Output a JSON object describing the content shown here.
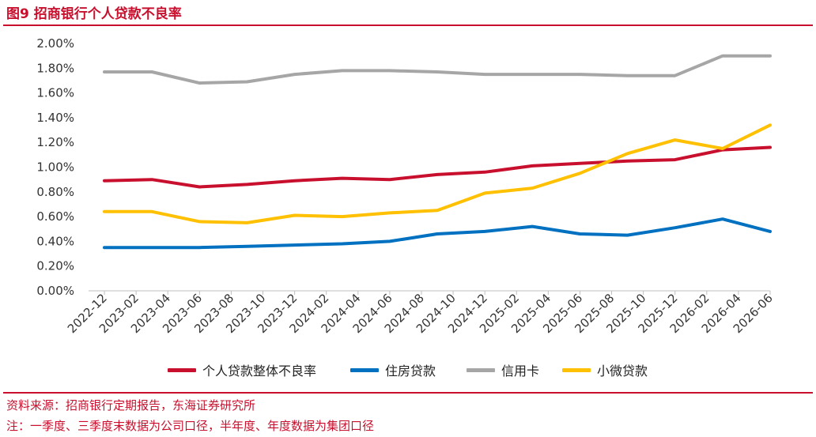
{
  "figure": {
    "title": "图9  招商银行个人贷款不良率",
    "source": "资料来源：招商银行定期报告，东海证券研究所",
    "note": "注：一季度、三季度末数据为公司口径，半年度、年度数据为集团口径"
  },
  "chart_data": {
    "type": "line",
    "title": "",
    "xlabel": "",
    "ylabel": "",
    "ylim": [
      0,
      0.02
    ],
    "y_ticks": [
      "0.00%",
      "0.20%",
      "0.40%",
      "0.60%",
      "0.80%",
      "1.00%",
      "1.20%",
      "1.40%",
      "1.60%",
      "1.80%",
      "2.00%"
    ],
    "x_ticks": [
      "2022-12",
      "2023-02",
      "2023-04",
      "2023-06",
      "2023-08",
      "2023-10",
      "2023-12",
      "2024-02",
      "2024-04",
      "2024-06",
      "2024-08",
      "2024-10",
      "2024-12",
      "2025-02",
      "2025-04",
      "2025-06",
      "2025-08",
      "2025-10",
      "2025-12",
      "2026-02",
      "2026-04",
      "2026-06"
    ],
    "x": [
      "2022-12",
      "2023-03",
      "2023-06",
      "2023-09",
      "2023-12",
      "2024-03",
      "2024-06",
      "2024-09",
      "2024-12",
      "2025-03",
      "2025-06",
      "2025-09",
      "2025-12",
      "2026-03",
      "2026-06"
    ],
    "grid": false,
    "legend": "bottom",
    "series": [
      {
        "name": "个人贷款整体不良率",
        "color": "#c8102e",
        "values": [
          0.0089,
          0.009,
          0.0084,
          0.0086,
          0.0089,
          0.0091,
          0.009,
          0.0094,
          0.0096,
          0.0101,
          0.0103,
          0.0105,
          0.0106,
          0.0114,
          0.0116
        ]
      },
      {
        "name": "住房贷款",
        "color": "#0070c0",
        "values": [
          0.0035,
          0.0035,
          0.0035,
          0.0036,
          0.0037,
          0.0038,
          0.004,
          0.0046,
          0.0048,
          0.0052,
          0.0046,
          0.0045,
          0.0051,
          0.0058,
          0.0048
        ]
      },
      {
        "name": "信用卡",
        "color": "#a6a6a6",
        "values": [
          0.0177,
          0.0177,
          0.0168,
          0.0169,
          0.0175,
          0.0178,
          0.0178,
          0.0177,
          0.0175,
          0.0175,
          0.0175,
          0.0174,
          0.0174,
          0.019,
          0.019
        ]
      },
      {
        "name": "小微贷款",
        "color": "#ffc000",
        "values": [
          0.0064,
          0.0064,
          0.0056,
          0.0055,
          0.0061,
          0.006,
          0.0063,
          0.0065,
          0.0079,
          0.0083,
          0.0095,
          0.0111,
          0.0122,
          0.0115,
          0.0134
        ]
      }
    ]
  }
}
